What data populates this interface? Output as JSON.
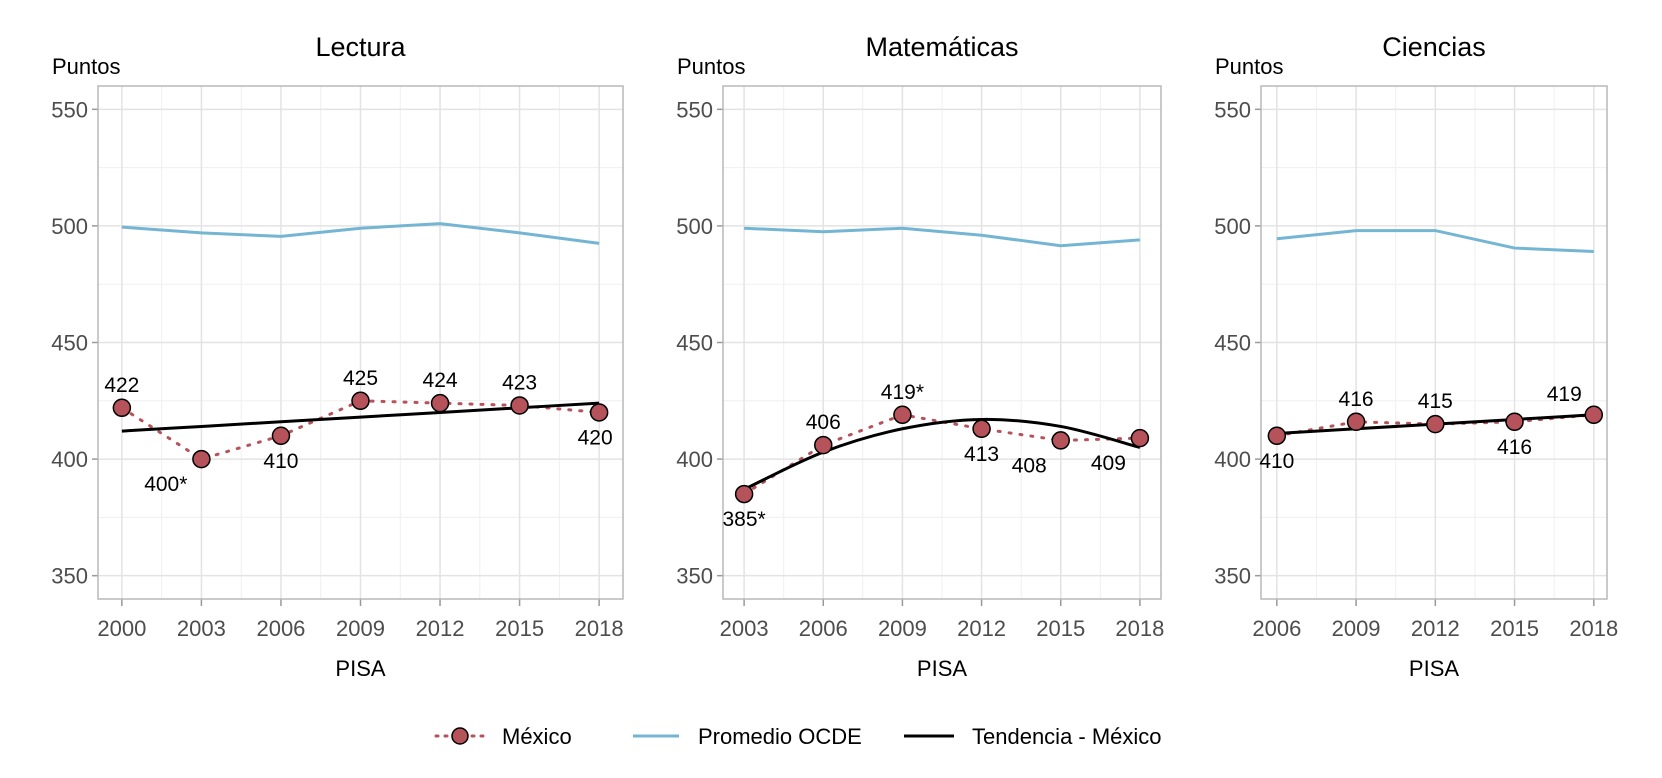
{
  "chart_data": [
    {
      "type": "line",
      "title": "Lectura",
      "ylabel": "Puntos",
      "xlabel": "PISA",
      "ylim": [
        340,
        560
      ],
      "yticks": [
        350,
        400,
        450,
        500,
        550
      ],
      "x": [
        2000,
        2003,
        2006,
        2009,
        2012,
        2015,
        2018
      ],
      "xlim": [
        1999.1,
        2018.9
      ],
      "grid": true,
      "series": [
        {
          "name": "México",
          "values": [
            422,
            400,
            410,
            425,
            424,
            423,
            420
          ],
          "labels": [
            "422",
            "400*",
            "410",
            "425",
            "424",
            "423",
            "420"
          ],
          "label_side": [
            "above",
            "below-left",
            "below",
            "above",
            "above",
            "above",
            "below"
          ]
        },
        {
          "name": "Promedio OCDE",
          "values": [
            499.5,
            497,
            495.5,
            499,
            501,
            497,
            492.5
          ]
        },
        {
          "name": "Tendencia - México",
          "values": [
            412,
            414,
            416,
            418,
            420,
            422,
            424
          ]
        }
      ]
    },
    {
      "type": "line",
      "title": "Matemáticas",
      "ylabel": "Puntos",
      "xlabel": "PISA",
      "ylim": [
        340,
        560
      ],
      "yticks": [
        350,
        400,
        450,
        500,
        550
      ],
      "x": [
        2003,
        2006,
        2009,
        2012,
        2015,
        2018
      ],
      "xlim": [
        2002.2,
        2018.8
      ],
      "grid": true,
      "series": [
        {
          "name": "México",
          "values": [
            385,
            406,
            419,
            413,
            408,
            409
          ],
          "labels": [
            "385*",
            "406",
            "419*",
            "413",
            "408",
            "409"
          ],
          "label_side": [
            "below",
            "above",
            "above",
            "below",
            "below-left",
            "below-left"
          ]
        },
        {
          "name": "Promedio OCDE",
          "values": [
            499,
            497.5,
            499,
            496,
            491.5,
            494
          ]
        },
        {
          "name": "Tendencia - México",
          "values": [
            387,
            403,
            413,
            417,
            414,
            405
          ]
        }
      ]
    },
    {
      "type": "line",
      "title": "Ciencias",
      "ylabel": "Puntos",
      "xlabel": "PISA",
      "ylim": [
        340,
        560
      ],
      "yticks": [
        350,
        400,
        450,
        500,
        550
      ],
      "x": [
        2006,
        2009,
        2012,
        2015,
        2018
      ],
      "xlim": [
        2005.4,
        2018.5
      ],
      "grid": true,
      "series": [
        {
          "name": "México",
          "values": [
            410,
            416,
            415,
            416,
            419
          ],
          "labels": [
            "410",
            "416",
            "415",
            "416",
            "419"
          ],
          "label_side": [
            "below",
            "above",
            "above",
            "below",
            "above-left"
          ]
        },
        {
          "name": "Promedio OCDE",
          "values": [
            494.5,
            498,
            498,
            490.5,
            489
          ]
        },
        {
          "name": "Tendencia - México",
          "values": [
            411,
            413,
            415,
            417,
            419
          ]
        }
      ]
    }
  ],
  "legend": {
    "placement": "bottom",
    "items": [
      "México",
      "Promedio OCDE",
      "Tendencia - México"
    ]
  },
  "colors": {
    "mexico": "#b5525a",
    "ocde": "#74b5d3",
    "trend": "#000000",
    "grid": "#e3e3e3",
    "border": "#b8b8b8"
  }
}
